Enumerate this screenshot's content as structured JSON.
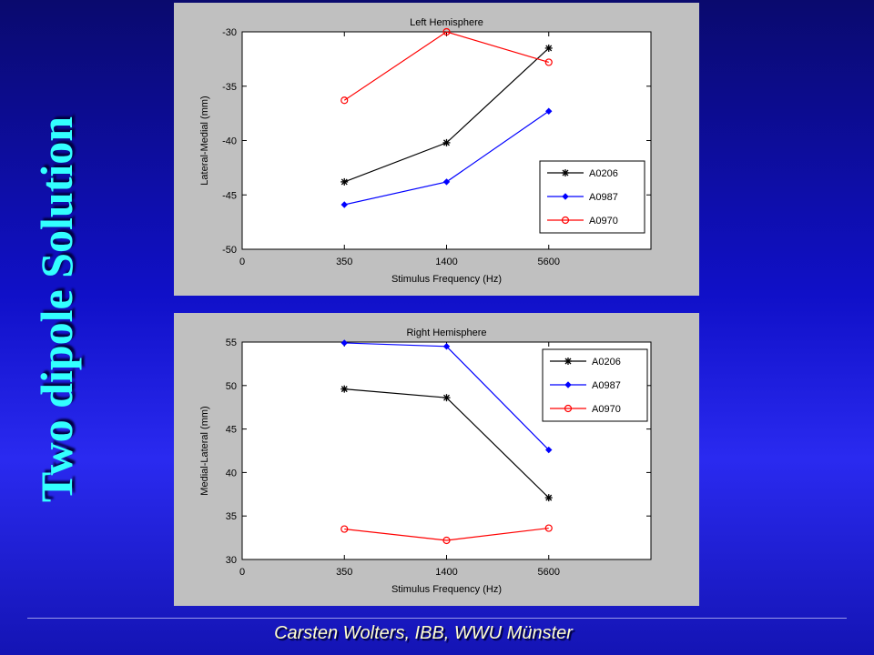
{
  "slide": {
    "title": "Two dipole Solution",
    "footer": "Carsten Wolters, IBB, WWU Münster",
    "title_color": "#33ffff",
    "footer_color": "#ffffcc"
  },
  "chart_data": [
    {
      "type": "line",
      "title": "Left Hemisphere",
      "xlabel": "Stimulus Frequency (Hz)",
      "ylabel": "Lateral-Medial (mm)",
      "x_ticks": [
        "0",
        "350",
        "1400",
        "5600"
      ],
      "y_ticks": [
        "-30",
        "-35",
        "-40",
        "-45",
        "-50"
      ],
      "ylim": [
        -50,
        -30
      ],
      "grid": false,
      "legend_position": "bottom-right",
      "categories": [
        "350",
        "1400",
        "5600"
      ],
      "series": [
        {
          "name": "A0206",
          "color": "#000000",
          "marker": "star",
          "values": [
            -43.8,
            -40.2,
            -31.5
          ]
        },
        {
          "name": "A0987",
          "color": "#0000ff",
          "marker": "diamond",
          "values": [
            -45.9,
            -43.8,
            -37.3
          ]
        },
        {
          "name": "A0970",
          "color": "#ff0000",
          "marker": "circle",
          "values": [
            -36.3,
            -30.0,
            -32.8
          ]
        }
      ]
    },
    {
      "type": "line",
      "title": "Right Hemisphere",
      "xlabel": "Stimulus Frequency (Hz)",
      "ylabel": "Medial-Lateral (mm)",
      "x_ticks": [
        "0",
        "350",
        "1400",
        "5600"
      ],
      "y_ticks": [
        "55",
        "50",
        "45",
        "40",
        "35",
        "30"
      ],
      "ylim": [
        30,
        55
      ],
      "grid": false,
      "legend_position": "top-right",
      "categories": [
        "350",
        "1400",
        "5600"
      ],
      "series": [
        {
          "name": "A0206",
          "color": "#000000",
          "marker": "star",
          "values": [
            49.6,
            48.6,
            37.1
          ]
        },
        {
          "name": "A0987",
          "color": "#0000ff",
          "marker": "diamond",
          "values": [
            54.9,
            54.5,
            42.6
          ]
        },
        {
          "name": "A0970",
          "color": "#ff0000",
          "marker": "circle",
          "values": [
            33.5,
            32.2,
            33.6
          ]
        }
      ]
    }
  ]
}
